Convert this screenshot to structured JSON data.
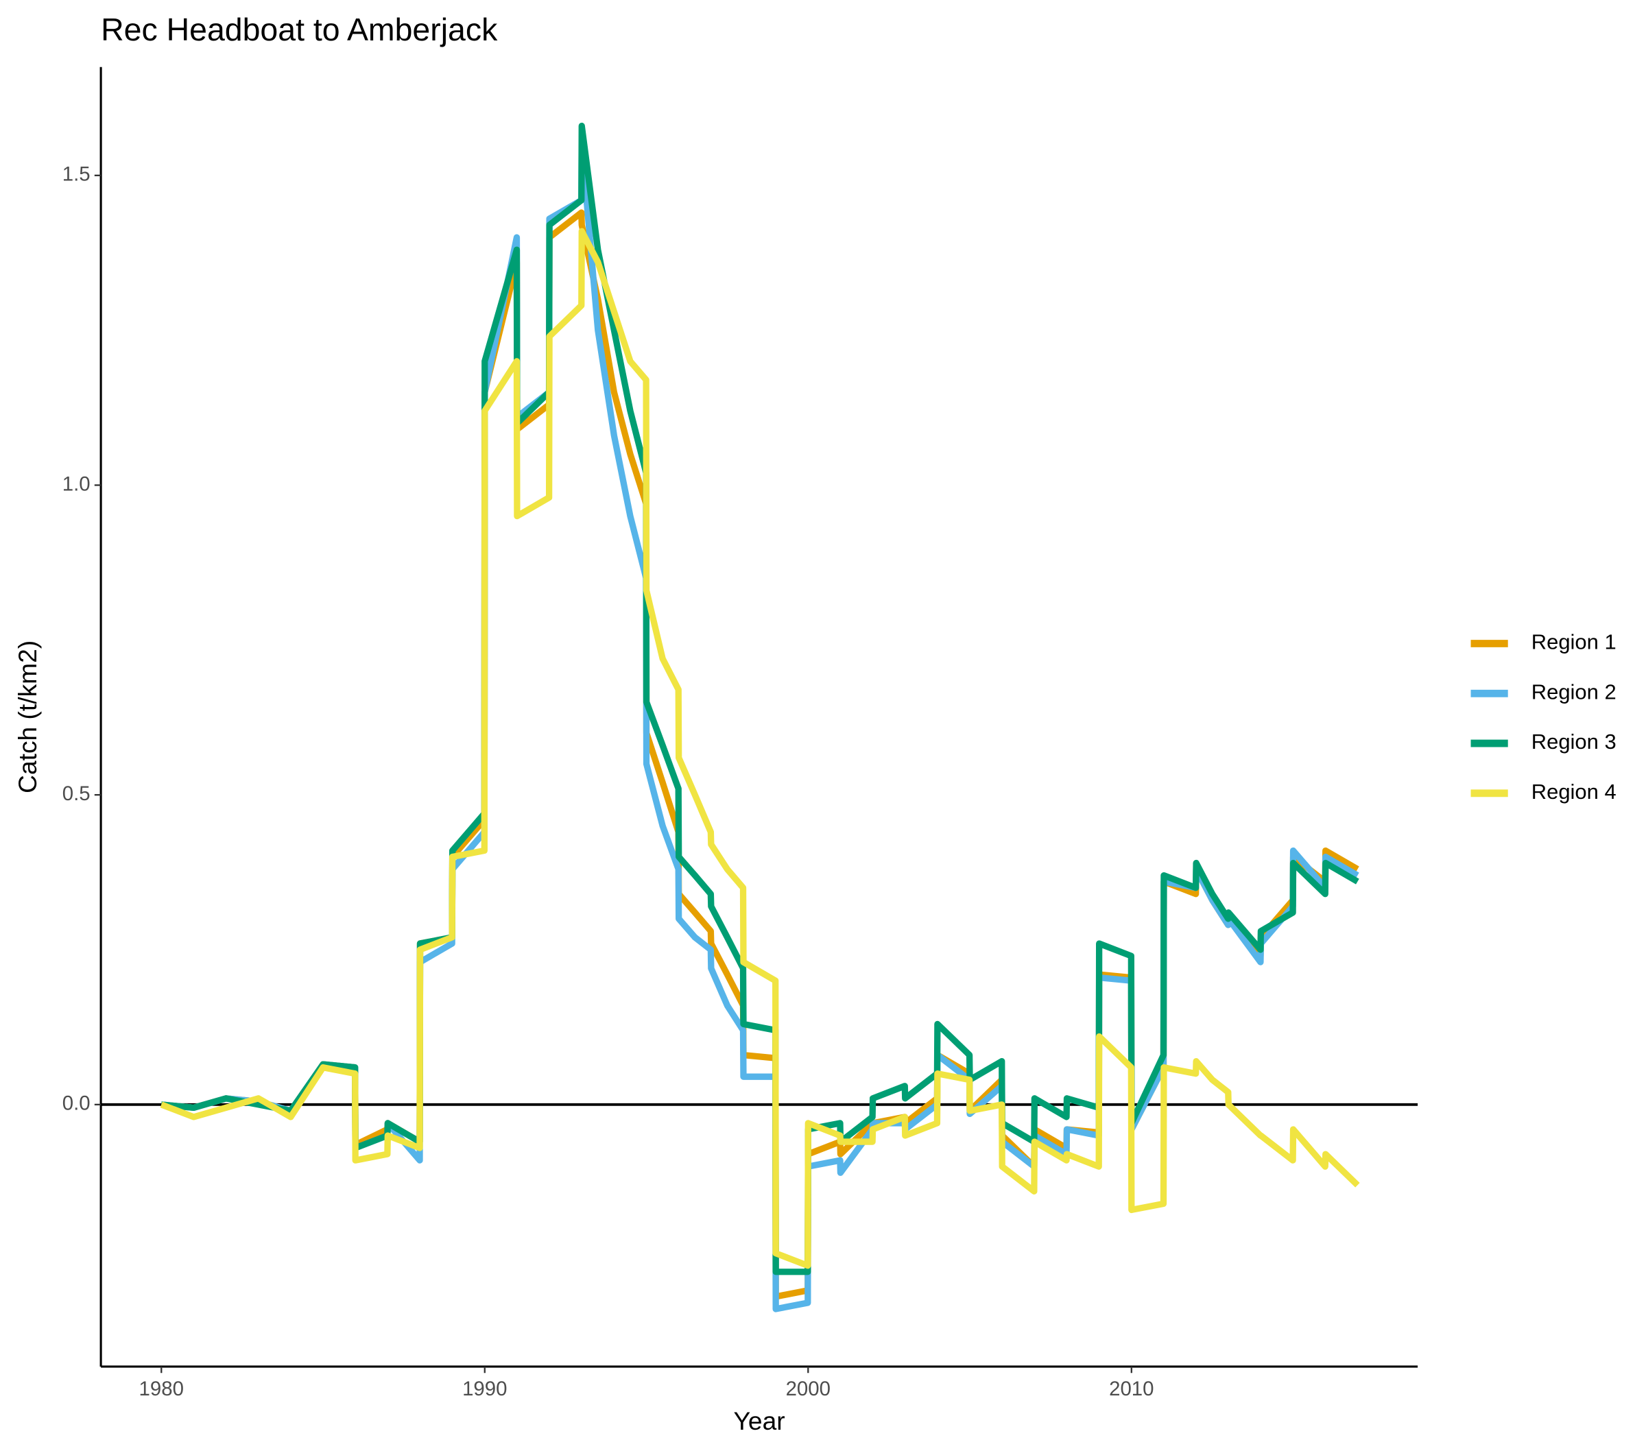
{
  "chart_data": {
    "type": "line",
    "title": "Rec Headboat to Amberjack",
    "x_label": "Year",
    "y_label": "Catch (t/km2)",
    "x": [
      1980,
      1981,
      1982,
      1983,
      1984,
      1985,
      1985.99,
      1986,
      1986.99,
      1987,
      1987.99,
      1988,
      1988.99,
      1989,
      1989.99,
      1990,
      1990.99,
      1991,
      1991.99,
      1992,
      1992.99,
      1993,
      1993.5,
      1994,
      1994.5,
      1994.99,
      1995,
      1995.5,
      1995.99,
      1996,
      1996.5,
      1996.99,
      1997,
      1997.5,
      1997.99,
      1998,
      1998.99,
      1999,
      1999.99,
      2000,
      2000.99,
      2001,
      2001.99,
      2002,
      2002.99,
      2003,
      2003.99,
      2004,
      2004.99,
      2005,
      2005.99,
      2006,
      2006.99,
      2007,
      2007.99,
      2008,
      2008.99,
      2009,
      2009.99,
      2010,
      2010.99,
      2011,
      2011.99,
      2012,
      2012.5,
      2012.99,
      2013,
      2013.99,
      2014,
      2014.99,
      2015,
      2015.99,
      2016,
      2016.99
    ],
    "series": [
      {
        "name": "Region 1",
        "color": "#e69f00",
        "values": [
          0,
          -0.005,
          0.01,
          0.005,
          -0.01,
          0.065,
          0.06,
          -0.065,
          -0.04,
          -0.03,
          -0.06,
          0.26,
          0.27,
          0.4,
          0.46,
          1.15,
          1.36,
          1.09,
          1.13,
          1.4,
          1.44,
          1.42,
          1.3,
          1.15,
          1.05,
          0.97,
          0.6,
          0.52,
          0.44,
          0.34,
          0.31,
          0.28,
          0.26,
          0.21,
          0.16,
          0.08,
          0.075,
          -0.31,
          -0.3,
          -0.08,
          -0.06,
          -0.08,
          -0.03,
          -0.03,
          -0.02,
          -0.03,
          0.01,
          0.08,
          0.05,
          -0.01,
          0.04,
          -0.05,
          -0.1,
          -0.04,
          -0.07,
          -0.04,
          -0.045,
          0.21,
          0.205,
          -0.04,
          0.06,
          0.36,
          0.34,
          0.38,
          0.33,
          0.29,
          0.3,
          0.24,
          0.27,
          0.33,
          0.4,
          0.36,
          0.41,
          0.38
        ]
      },
      {
        "name": "Region 2",
        "color": "#56b4e9",
        "values": [
          0,
          -0.005,
          0.01,
          0.005,
          -0.01,
          0.065,
          0.06,
          -0.07,
          -0.05,
          -0.03,
          -0.09,
          0.23,
          0.26,
          0.38,
          0.44,
          1.15,
          1.4,
          1.11,
          1.15,
          1.43,
          1.46,
          1.55,
          1.25,
          1.08,
          0.95,
          0.85,
          0.55,
          0.45,
          0.38,
          0.3,
          0.27,
          0.25,
          0.22,
          0.16,
          0.12,
          0.045,
          0.045,
          -0.33,
          -0.32,
          -0.1,
          -0.09,
          -0.11,
          -0.04,
          -0.03,
          -0.03,
          -0.04,
          0.0,
          0.08,
          0.04,
          -0.015,
          0.03,
          -0.06,
          -0.1,
          -0.05,
          -0.08,
          -0.04,
          -0.05,
          0.205,
          0.2,
          -0.04,
          0.06,
          0.36,
          0.35,
          0.38,
          0.33,
          0.29,
          0.3,
          0.23,
          0.26,
          0.32,
          0.41,
          0.35,
          0.4,
          0.37
        ]
      },
      {
        "name": "Region 3",
        "color": "#009e73",
        "values": [
          0,
          -0.005,
          0.01,
          0,
          -0.01,
          0.065,
          0.06,
          -0.07,
          -0.05,
          -0.03,
          -0.06,
          0.26,
          0.27,
          0.41,
          0.47,
          1.2,
          1.38,
          1.1,
          1.15,
          1.42,
          1.46,
          1.58,
          1.38,
          1.25,
          1.12,
          1.02,
          0.65,
          0.58,
          0.51,
          0.4,
          0.37,
          0.34,
          0.32,
          0.27,
          0.22,
          0.13,
          0.12,
          -0.27,
          -0.27,
          -0.04,
          -0.03,
          -0.06,
          -0.02,
          0.01,
          0.03,
          0.01,
          0.05,
          0.13,
          0.08,
          0.04,
          0.07,
          -0.03,
          -0.06,
          0.01,
          -0.02,
          0.01,
          -0.005,
          0.26,
          0.24,
          -0.03,
          0.08,
          0.37,
          0.35,
          0.39,
          0.34,
          0.3,
          0.31,
          0.25,
          0.28,
          0.31,
          0.39,
          0.34,
          0.39,
          0.36
        ]
      },
      {
        "name": "Region 4",
        "color": "#f0e442",
        "values": [
          0,
          -0.02,
          -0.005,
          0.01,
          -0.02,
          0.06,
          0.05,
          -0.09,
          -0.08,
          -0.05,
          -0.07,
          0.25,
          0.27,
          0.4,
          0.41,
          1.12,
          1.2,
          0.95,
          0.98,
          1.24,
          1.29,
          1.41,
          1.36,
          1.28,
          1.2,
          1.17,
          0.83,
          0.72,
          0.67,
          0.56,
          0.5,
          0.44,
          0.42,
          0.38,
          0.35,
          0.23,
          0.2,
          -0.24,
          -0.26,
          -0.03,
          -0.05,
          -0.06,
          -0.06,
          -0.04,
          -0.02,
          -0.05,
          -0.03,
          0.05,
          0.04,
          -0.01,
          0.0,
          -0.1,
          -0.14,
          -0.06,
          -0.09,
          -0.08,
          -0.1,
          0.11,
          0.06,
          -0.17,
          -0.16,
          0.06,
          0.05,
          0.07,
          0.04,
          0.02,
          0.0,
          -0.05,
          -0.05,
          -0.09,
          -0.04,
          -0.1,
          -0.08,
          -0.13
        ]
      }
    ],
    "xlim": [
      1978.13,
      2018.85
    ],
    "xticks": [
      1980,
      1990,
      2000,
      2010
    ],
    "ylim": [
      -0.423,
      1.675
    ],
    "yticks": [
      {
        "value": 0,
        "label": "0.0"
      },
      0.5,
      {
        "value": 1,
        "label": "1.0"
      },
      1.5
    ],
    "zero_line": true
  }
}
